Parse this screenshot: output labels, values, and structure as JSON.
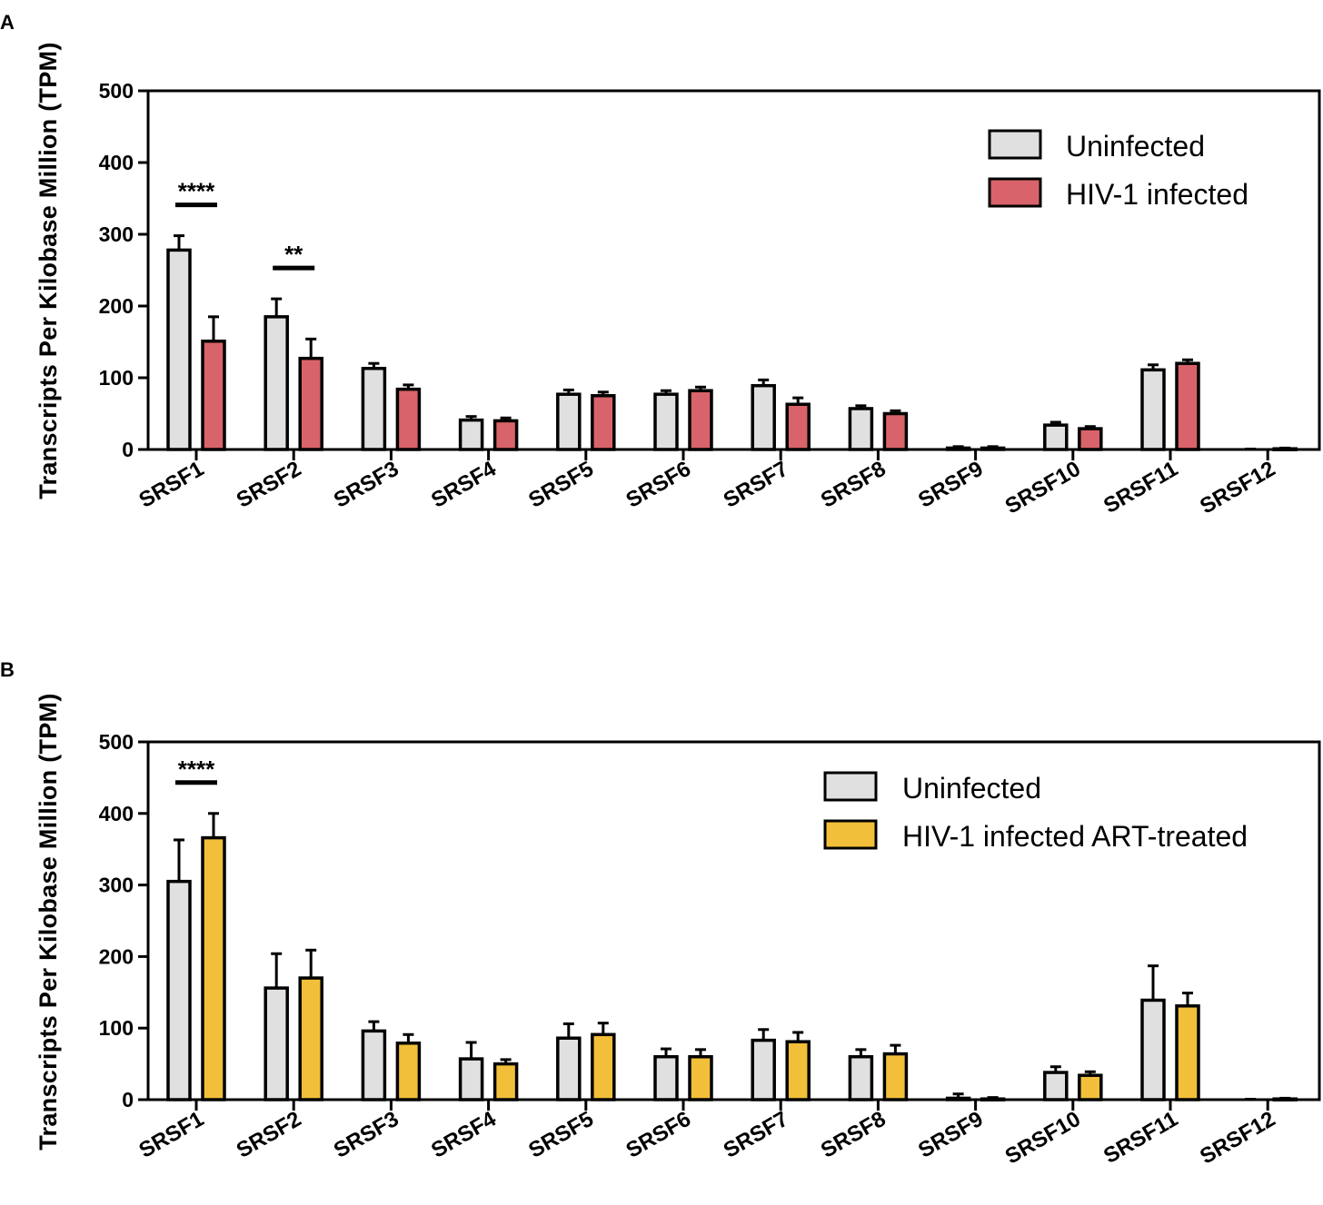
{
  "chart_data": [
    {
      "type": "bar",
      "panel": "A",
      "ylabel": "Transcripts Per Kilobase Million (TPM)",
      "xlabel": "",
      "ylim": [
        0,
        500
      ],
      "yticks": [
        0,
        100,
        200,
        300,
        400,
        500
      ],
      "legend_position": "top-right",
      "categories": [
        "SRSF1",
        "SRSF2",
        "SRSF3",
        "SRSF4",
        "SRSF5",
        "SRSF6",
        "SRSF7",
        "SRSF8",
        "SRSF9",
        "SRSF10",
        "SRSF11",
        "SRSF12"
      ],
      "series": [
        {
          "name": "Uninfected",
          "color": "#e0e0e0",
          "values": [
            278,
            185,
            113,
            41,
            77,
            77,
            89,
            57,
            2,
            34,
            111,
            0
          ],
          "errors": [
            20,
            25,
            7,
            5,
            6,
            5,
            8,
            4,
            2,
            4,
            7,
            0
          ]
        },
        {
          "name": "HIV-1 infected",
          "color": "#d9636a",
          "values": [
            151,
            127,
            84,
            40,
            75,
            82,
            63,
            50,
            2,
            29,
            120,
            1
          ],
          "errors": [
            34,
            27,
            6,
            4,
            5,
            5,
            9,
            4,
            2,
            3,
            5,
            1
          ]
        }
      ],
      "annotations": [
        {
          "text": "****",
          "category": "SRSF1"
        },
        {
          "text": "**",
          "category": "SRSF2"
        }
      ]
    },
    {
      "type": "bar",
      "panel": "B",
      "ylabel": "Transcripts Per Kilobase Million (TPM)",
      "xlabel": "",
      "ylim": [
        0,
        500
      ],
      "yticks": [
        0,
        100,
        200,
        300,
        400,
        500
      ],
      "legend_position": "top-right",
      "categories": [
        "SRSF1",
        "SRSF2",
        "SRSF3",
        "SRSF4",
        "SRSF5",
        "SRSF6",
        "SRSF7",
        "SRSF8",
        "SRSF9",
        "SRSF10",
        "SRSF11",
        "SRSF12"
      ],
      "series": [
        {
          "name": "Uninfected",
          "color": "#e0e0e0",
          "values": [
            305,
            156,
            96,
            57,
            86,
            60,
            83,
            60,
            2,
            38,
            139,
            0
          ],
          "errors": [
            58,
            48,
            13,
            23,
            20,
            11,
            15,
            10,
            6,
            8,
            48,
            1
          ]
        },
        {
          "name": "HIV-1 infected ART-treated",
          "color": "#f2bf3a",
          "values": [
            366,
            170,
            79,
            50,
            91,
            60,
            81,
            64,
            1,
            34,
            131,
            1
          ],
          "errors": [
            34,
            39,
            12,
            6,
            16,
            10,
            13,
            12,
            2,
            5,
            18,
            1
          ]
        }
      ],
      "annotations": [
        {
          "text": "****",
          "category": "SRSF1"
        }
      ]
    }
  ]
}
